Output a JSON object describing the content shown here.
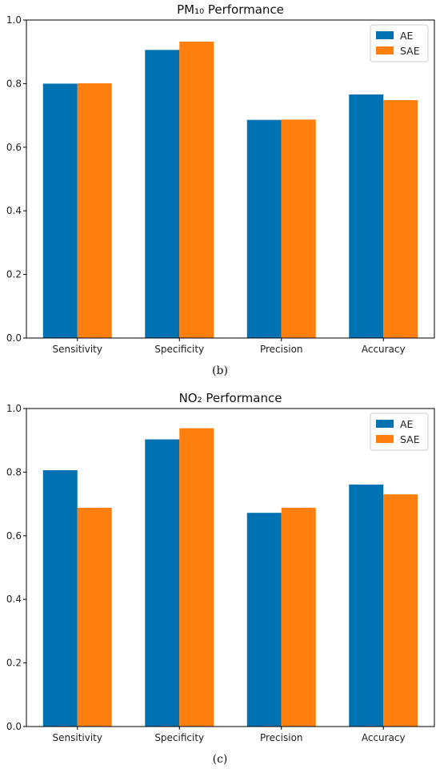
{
  "chart_data": [
    {
      "type": "bar",
      "title": "PM₁₀ Performance",
      "caption": "(b)",
      "categories": [
        "Sensitivity",
        "Specificity",
        "Precision",
        "Accuracy"
      ],
      "series": [
        {
          "name": "AE",
          "color": "#0072B2",
          "values": [
            0.8,
            0.906,
            0.686,
            0.766
          ]
        },
        {
          "name": "SAE",
          "color": "#FF7F0E",
          "values": [
            0.801,
            0.932,
            0.687,
            0.748
          ]
        }
      ],
      "ylim": [
        0,
        1.0
      ],
      "yticks": [
        "0.0",
        "0.2",
        "0.4",
        "0.6",
        "0.8",
        "1.0"
      ],
      "legend": "top-right",
      "grid": false
    },
    {
      "type": "bar",
      "title": "NO₂ Performance",
      "caption": "(c)",
      "categories": [
        "Sensitivity",
        "Specificity",
        "Precision",
        "Accuracy"
      ],
      "series": [
        {
          "name": "AE",
          "color": "#0072B2",
          "values": [
            0.806,
            0.903,
            0.672,
            0.761
          ]
        },
        {
          "name": "SAE",
          "color": "#FF7F0E",
          "values": [
            0.688,
            0.938,
            0.688,
            0.73
          ]
        }
      ],
      "ylim": [
        0,
        1.0
      ],
      "yticks": [
        "0.0",
        "0.2",
        "0.4",
        "0.6",
        "0.8",
        "1.0"
      ],
      "legend": "top-right",
      "grid": false
    }
  ]
}
